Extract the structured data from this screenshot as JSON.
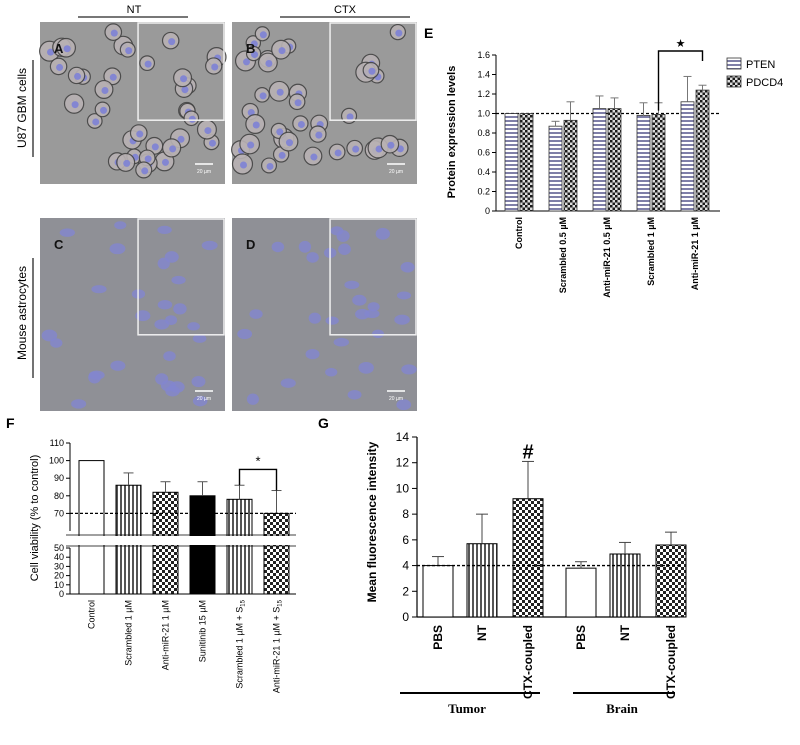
{
  "micrographs": {
    "header_left": "NT",
    "header_right": "CTX",
    "row1_label": "U87 GBM cells",
    "row2_label": "Mouse astrocytes",
    "panels": [
      {
        "letter": "A",
        "scale": "20 µm",
        "cell": "u87"
      },
      {
        "letter": "B",
        "scale": "20 µm",
        "cell": "u87"
      },
      {
        "letter": "C",
        "scale": "20 µm",
        "cell": "astro"
      },
      {
        "letter": "D",
        "scale": "20 µm",
        "cell": "astro"
      }
    ]
  },
  "chart_data": [
    {
      "panel": "E",
      "type": "bar",
      "ylabel": "Protein expression levels",
      "ylim": [
        0,
        1.6
      ],
      "yticks": [
        "0",
        "0.2",
        "0.4",
        "0.6",
        "0.8",
        "1.0",
        "1.2",
        "1.4",
        "1.6"
      ],
      "categories": [
        "Control",
        "Scrambled 0.5 µM",
        "Anti-miR-21 0.5 µM",
        "Scrambled 1 µM",
        "Anti-miR-21 1 µM"
      ],
      "series": [
        {
          "name": "PTEN",
          "values": [
            1.0,
            0.87,
            1.05,
            0.98,
            1.12
          ],
          "errors": [
            0,
            0.05,
            0.13,
            0.13,
            0.26
          ]
        },
        {
          "name": "PDCD4",
          "values": [
            1.0,
            0.93,
            1.05,
            0.99,
            1.24
          ],
          "errors": [
            0,
            0.19,
            0.11,
            0.12,
            0.05
          ]
        }
      ],
      "reference_line": 1.0,
      "significance": "★",
      "legend": "top-right"
    },
    {
      "panel": "F",
      "type": "bar",
      "ylabel": "Cell viability (% to control)",
      "yticks": [
        "0",
        "10",
        "20",
        "30",
        "40",
        "50",
        "70",
        "80",
        "90",
        "100",
        "110"
      ],
      "categories": [
        "Control",
        "Scrambled 1 µM",
        "Anti-miR-21 1 µM",
        "Sunitinib 15 µM",
        "Scrambled 1 µM + S",
        "Anti-miR-21 1 µM + S"
      ],
      "sub": "15",
      "values": [
        100,
        86,
        82,
        80,
        78,
        70
      ],
      "errors": [
        0,
        7,
        6,
        8,
        8,
        13
      ],
      "reference_line": 70,
      "axis_break": [
        50,
        60
      ],
      "significance": "*"
    },
    {
      "panel": "G",
      "type": "bar",
      "ylabel": "Mean fluorescence intensity",
      "ylim": [
        0,
        14
      ],
      "yticks": [
        "0",
        "2",
        "4",
        "6",
        "8",
        "10",
        "12",
        "14"
      ],
      "categories": [
        "PBS",
        "NT",
        "CTX-coupled",
        "PBS",
        "NT",
        "CTX-coupled"
      ],
      "groups": [
        "Tumor",
        "Brain"
      ],
      "values": [
        4.0,
        5.7,
        9.2,
        3.8,
        4.9,
        5.6
      ],
      "errors": [
        0.7,
        2.3,
        2.9,
        0.5,
        0.9,
        1.0
      ],
      "reference_line": 4.0,
      "significance": "#"
    }
  ]
}
